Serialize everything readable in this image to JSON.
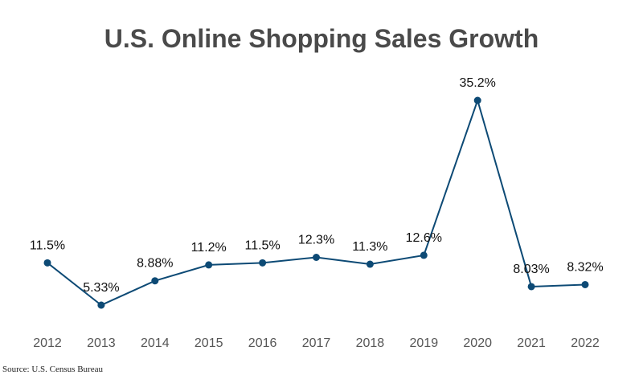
{
  "chart_data": {
    "type": "line",
    "title": "U.S. Online Shopping Sales Growth",
    "xlabel": "",
    "ylabel": "",
    "categories": [
      "2012",
      "2013",
      "2014",
      "2015",
      "2016",
      "2017",
      "2018",
      "2019",
      "2020",
      "2021",
      "2022"
    ],
    "series": [
      {
        "values": [
          11.5,
          5.33,
          8.88,
          11.2,
          11.5,
          12.3,
          11.3,
          12.6,
          35.2,
          8.03,
          8.32
        ],
        "labels": [
          "11.5%",
          "5.33%",
          "8.88%",
          "11.2%",
          "11.5%",
          "12.3%",
          "11.3%",
          "12.6%",
          "35.2%",
          "8.03%",
          "8.32%"
        ],
        "color": "#0d4a75"
      }
    ],
    "ylim": [
      0,
      40
    ],
    "grid": false,
    "legend": "none"
  },
  "source": "Source: U.S. Census Bureau"
}
